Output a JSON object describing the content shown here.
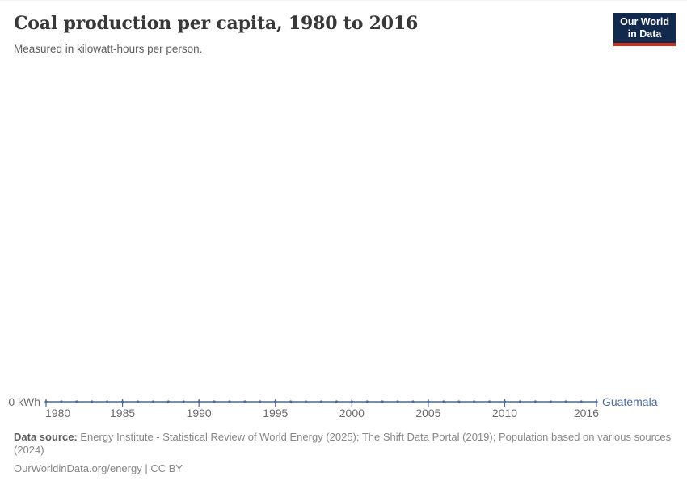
{
  "header": {
    "title": "Coal production per capita, 1980 to 2016",
    "subtitle": "Measured in kilowatt-hours per person."
  },
  "logo": {
    "line1": "Our World",
    "line2": "in Data",
    "bg_color": "#12294e",
    "accent_color": "#c5301f"
  },
  "chart_data": {
    "type": "line",
    "title": "Coal production per capita, 1980 to 2016",
    "unit": "kilowatt-hours per person",
    "x": [
      1980,
      1981,
      1982,
      1983,
      1984,
      1985,
      1986,
      1987,
      1988,
      1989,
      1990,
      1991,
      1992,
      1993,
      1994,
      1995,
      1996,
      1997,
      1998,
      1999,
      2000,
      2001,
      2002,
      2003,
      2004,
      2005,
      2006,
      2007,
      2008,
      2009,
      2010,
      2011,
      2012,
      2013,
      2014,
      2015,
      2016
    ],
    "series": [
      {
        "name": "Guatemala",
        "color": "#4C6A9C",
        "values": [
          0,
          0,
          0,
          0,
          0,
          0,
          0,
          0,
          0,
          0,
          0,
          0,
          0,
          0,
          0,
          0,
          0,
          0,
          0,
          0,
          0,
          0,
          0,
          0,
          0,
          0,
          0,
          0,
          0,
          0,
          0,
          0,
          0,
          0,
          0,
          0,
          0
        ]
      }
    ],
    "x_tick_labels": [
      1980,
      1985,
      1990,
      1995,
      2000,
      2005,
      2010,
      2016
    ],
    "y_tick_label": "0 kWh",
    "ylim": [
      0,
      0
    ],
    "grid": false,
    "legend_position": "end-of-line"
  },
  "footer": {
    "source_label": "Data source:",
    "source_text": " Energy Institute - Statistical Review of World Energy (2025); The Shift Data Portal (2019); Population based on various sources (2024)",
    "link_text": "OurWorldinData.org/energy | CC BY"
  },
  "colors": {
    "title": "#383838",
    "subtitle": "#5f5f5f",
    "axis_label": "#6b6b6b",
    "series": "#4C6A9C",
    "footer": "#868686"
  }
}
